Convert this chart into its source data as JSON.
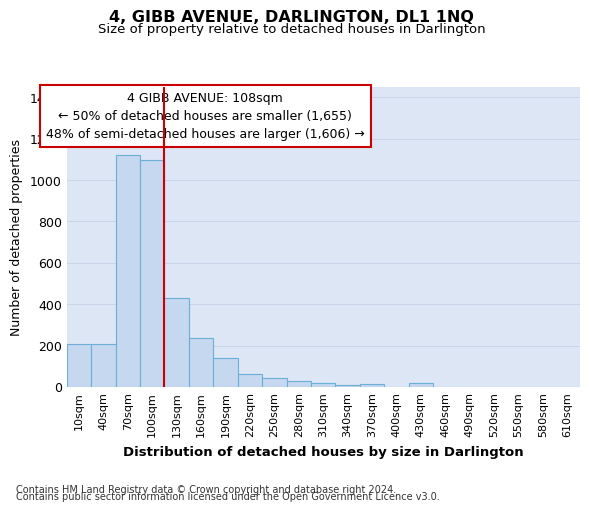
{
  "title": "4, GIBB AVENUE, DARLINGTON, DL1 1NQ",
  "subtitle": "Size of property relative to detached houses in Darlington",
  "xlabel": "Distribution of detached houses by size in Darlington",
  "ylabel": "Number of detached properties",
  "categories": [
    "10sqm",
    "40sqm",
    "70sqm",
    "100sqm",
    "130sqm",
    "160sqm",
    "190sqm",
    "220sqm",
    "250sqm",
    "280sqm",
    "310sqm",
    "340sqm",
    "370sqm",
    "400sqm",
    "430sqm",
    "460sqm",
    "490sqm",
    "520sqm",
    "550sqm",
    "580sqm",
    "610sqm"
  ],
  "values": [
    210,
    210,
    1120,
    1095,
    430,
    235,
    140,
    62,
    42,
    27,
    18,
    10,
    15,
    0,
    18,
    0,
    0,
    0,
    0,
    0,
    0
  ],
  "bar_color": "#c5d8ef",
  "bar_edge_color": "#6baed6",
  "grid_color": "#c8d4e8",
  "background_color": "#dce6f5",
  "vline_color": "#cc0000",
  "annotation_text": "4 GIBB AVENUE: 108sqm\n← 50% of detached houses are smaller (1,655)\n48% of semi-detached houses are larger (1,606) →",
  "annotation_box_color": "#ffffff",
  "annotation_box_edge": "#cc0000",
  "ylim": [
    0,
    1450
  ],
  "yticks": [
    0,
    200,
    400,
    600,
    800,
    1000,
    1200,
    1400
  ],
  "footer_line1": "Contains HM Land Registry data © Crown copyright and database right 2024.",
  "footer_line2": "Contains public sector information licensed under the Open Government Licence v3.0."
}
